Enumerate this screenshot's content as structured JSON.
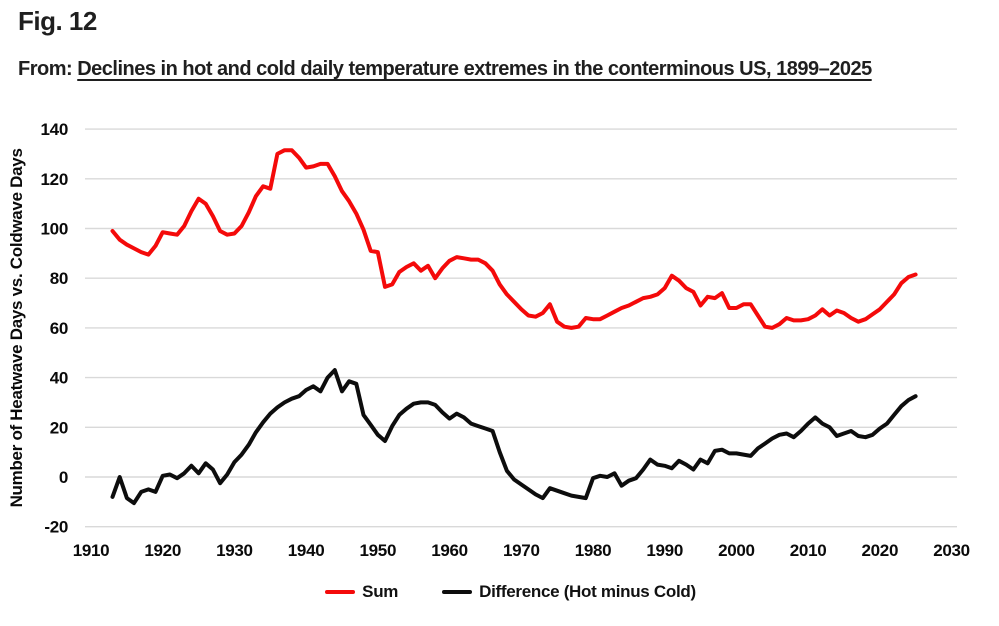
{
  "figure_label": "Fig. 12",
  "source": {
    "prefix": "From:",
    "title": "Declines in hot and cold daily temperature extremes in the conterminous US, 1899–2025"
  },
  "colors": {
    "sum_line": "#f40a0a",
    "difference_line": "#0d0d0d",
    "gridline": "#d9d9d9",
    "tick_text": "#0a0a0a",
    "background": "#ffffff"
  },
  "chart_data": {
    "type": "line",
    "title": "",
    "xlabel": "",
    "ylabel": "Number of Heatwave Days vs. Coldwave Days",
    "xlim": [
      1910,
      2030
    ],
    "ylim": [
      -20,
      140
    ],
    "xticks": [
      1910,
      1920,
      1930,
      1940,
      1950,
      1960,
      1970,
      1980,
      1990,
      2000,
      2010,
      2020,
      2030
    ],
    "yticks": [
      -20,
      0,
      20,
      40,
      60,
      80,
      100,
      120,
      140
    ],
    "grid": "horizontal-only",
    "legend_position": "bottom",
    "x_years": [
      1913,
      1914,
      1915,
      1916,
      1917,
      1918,
      1919,
      1920,
      1921,
      1922,
      1923,
      1924,
      1925,
      1926,
      1927,
      1928,
      1929,
      1930,
      1931,
      1932,
      1933,
      1934,
      1935,
      1936,
      1937,
      1938,
      1939,
      1940,
      1941,
      1942,
      1943,
      1944,
      1945,
      1946,
      1947,
      1948,
      1949,
      1950,
      1951,
      1952,
      1953,
      1954,
      1955,
      1956,
      1957,
      1958,
      1959,
      1960,
      1961,
      1962,
      1963,
      1964,
      1965,
      1966,
      1967,
      1968,
      1969,
      1970,
      1971,
      1972,
      1973,
      1974,
      1975,
      1976,
      1977,
      1978,
      1979,
      1980,
      1981,
      1982,
      1983,
      1984,
      1985,
      1986,
      1987,
      1988,
      1989,
      1990,
      1991,
      1992,
      1993,
      1994,
      1995,
      1996,
      1997,
      1998,
      1999,
      2000,
      2001,
      2002,
      2003,
      2004,
      2005,
      2006,
      2007,
      2008,
      2009,
      2010,
      2011,
      2012,
      2013,
      2014,
      2015,
      2016,
      2017,
      2018,
      2019,
      2020,
      2021,
      2022,
      2023,
      2024,
      2025
    ],
    "series": [
      {
        "name": "Sum",
        "color": "#f40a0a",
        "values": [
          99,
          95.5,
          93.5,
          92,
          90.5,
          89.5,
          93,
          98.5,
          98,
          97.5,
          101,
          107,
          112,
          110,
          105,
          99,
          97.5,
          98,
          101,
          106.5,
          113,
          117,
          116,
          130,
          131.5,
          131.5,
          128.5,
          124.5,
          125,
          126,
          126,
          121,
          115,
          111,
          106,
          99.5,
          91,
          90.5,
          76.5,
          77.5,
          82.5,
          84.5,
          86,
          83,
          85,
          80,
          84,
          87,
          88.5,
          88,
          87.5,
          87.5,
          86,
          83,
          77.5,
          73.5,
          70.5,
          67.5,
          65,
          64.5,
          66,
          69.5,
          62.5,
          60.5,
          60,
          60.5,
          64,
          63.5,
          63.5,
          65,
          66.5,
          68,
          69,
          70.5,
          72,
          72.5,
          73.5,
          76,
          81,
          79,
          76,
          74.5,
          69,
          72.5,
          72,
          74,
          68,
          68,
          69.5,
          69.5,
          65,
          60.5,
          60,
          61.5,
          64,
          63,
          63,
          63.5,
          65,
          67.5,
          65,
          67,
          66,
          64,
          62.5,
          63.5,
          65.5,
          67.5,
          70.5,
          73.5,
          78,
          80.5,
          81.5
        ]
      },
      {
        "name": "Difference (Hot minus Cold)",
        "color": "#0d0d0d",
        "values": [
          -8,
          0,
          -8.5,
          -10.5,
          -6,
          -5,
          -6,
          0.5,
          1,
          -0.5,
          1.5,
          4.5,
          1.5,
          5.5,
          3,
          -2.5,
          1,
          6,
          9,
          13,
          18,
          22,
          25.5,
          28,
          30,
          31.5,
          32.5,
          35,
          36.5,
          34.5,
          40,
          43,
          34.5,
          38.5,
          37.5,
          25,
          21,
          17,
          14.5,
          20.5,
          25,
          27.5,
          29.5,
          30,
          30,
          29,
          26,
          23.5,
          25.5,
          24,
          21.5,
          20.5,
          19.5,
          18.5,
          10,
          2.5,
          -1,
          -3,
          -5,
          -7,
          -8.5,
          -4.5,
          -5.5,
          -6.5,
          -7.5,
          -8,
          -8.5,
          -0.5,
          0.5,
          0,
          1.5,
          -3.5,
          -1.5,
          -0.5,
          3,
          7,
          5,
          4.5,
          3.5,
          6.5,
          5,
          3,
          7,
          5.5,
          10.5,
          11,
          9.5,
          9.5,
          9,
          8.5,
          11.5,
          13.5,
          15.5,
          17,
          17.5,
          16,
          18.5,
          21.5,
          24,
          21.5,
          20,
          16.5,
          17.5,
          18.5,
          16.5,
          16,
          17,
          19.5,
          21.5,
          25,
          28.5,
          31,
          32.5
        ]
      }
    ]
  }
}
